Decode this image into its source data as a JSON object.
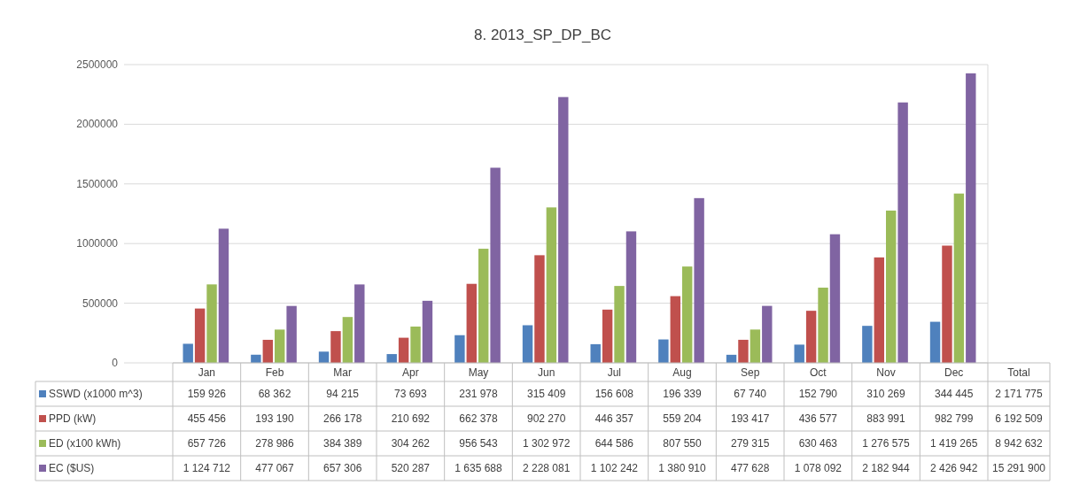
{
  "chart_data": {
    "type": "bar",
    "title": "8. 2013_SP_DP_BC",
    "categories": [
      "Jan",
      "Feb",
      "Mar",
      "Apr",
      "May",
      "Jun",
      "Jul",
      "Aug",
      "Sep",
      "Oct",
      "Nov",
      "Dec"
    ],
    "series": [
      {
        "name": "SSWD (x1000 m^3)",
        "color": "#4f81bd",
        "values": [
          159926,
          68362,
          94215,
          73693,
          231978,
          315409,
          156608,
          196339,
          67740,
          152790,
          310269,
          344445
        ]
      },
      {
        "name": "PPD (kW)",
        "color": "#c0504d",
        "values": [
          455456,
          193190,
          266178,
          210692,
          662378,
          902270,
          446357,
          559204,
          193417,
          436577,
          883991,
          982799
        ]
      },
      {
        "name": "ED (x100 kWh)",
        "color": "#9bbb59",
        "values": [
          657726,
          278986,
          384389,
          304262,
          956543,
          1302972,
          644586,
          807550,
          279315,
          630463,
          1276575,
          1419265
        ]
      },
      {
        "name": "EC ($US)",
        "color": "#8064a2",
        "values": [
          1124712,
          477067,
          657306,
          520287,
          1635688,
          2228081,
          1102242,
          1380910,
          477628,
          1078092,
          2182944,
          2426942
        ]
      }
    ],
    "ylim": [
      0,
      2500000
    ],
    "yticks": [
      0,
      500000,
      1000000,
      1500000,
      2000000,
      2500000
    ],
    "grid": "y",
    "legend": "bottom",
    "data_labels": true,
    "annotations": [
      "Total",
      "2 171 775",
      "6 192 509",
      "8 942 632",
      "15 291 900"
    ]
  }
}
